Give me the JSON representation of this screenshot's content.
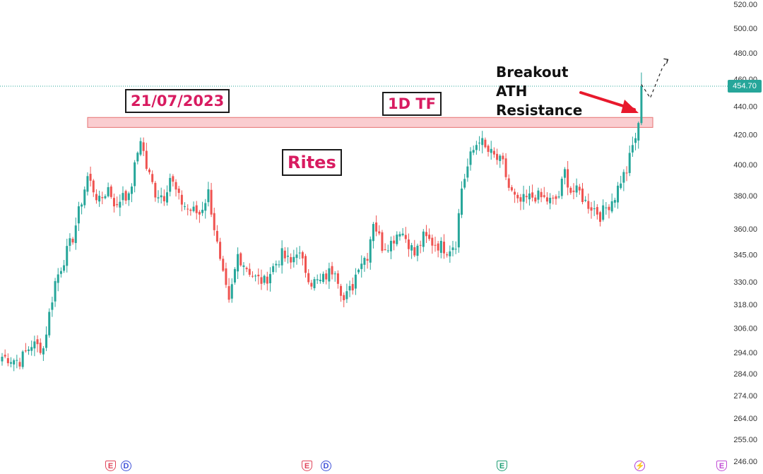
{
  "annotations": {
    "date_label": "21/07/2023",
    "timeframe_label": "1D TF",
    "ticker_label": "Rites",
    "breakout_lines": [
      "Breakout",
      "ATH",
      "Resistance"
    ]
  },
  "last_price_tag": "454.70",
  "event_icons": [
    {
      "name": "earnings-icon",
      "glyph": "E",
      "style": "earn-red"
    },
    {
      "name": "dividend-icon",
      "glyph": "D",
      "style": "div"
    },
    {
      "name": "earnings-icon",
      "glyph": "E",
      "style": "earn-red"
    },
    {
      "name": "dividend-icon",
      "glyph": "D",
      "style": "div"
    },
    {
      "name": "earnings-icon",
      "glyph": "E",
      "style": "earn-green"
    },
    {
      "name": "split-icon",
      "glyph": "⚡",
      "style": "split"
    },
    {
      "name": "earnings-icon",
      "glyph": "E",
      "style": "earn-pink"
    }
  ],
  "colors": {
    "up": "#26a69a",
    "down": "#ef5350",
    "resistance_fill": "#f9c4c8",
    "resistance_stroke": "#e57373",
    "arrow": "#e8192c",
    "axis_text": "#333333"
  },
  "chart_data": {
    "type": "candlestick",
    "title": "",
    "xlabel": "",
    "ylabel": "",
    "y_scale": "log",
    "ylim": [
      246,
      520
    ],
    "y_ticks": [
      "520.00",
      "500.00",
      "480.00",
      "460.00",
      "440.00",
      "420.00",
      "400.00",
      "380.00",
      "360.00",
      "345.00",
      "330.00",
      "318.00",
      "306.00",
      "294.00",
      "284.00",
      "274.00",
      "264.00",
      "255.00",
      "246.00"
    ],
    "y_tick_values": [
      520,
      500,
      480,
      460,
      440,
      420,
      400,
      380,
      360,
      345,
      330,
      318,
      306,
      294,
      284,
      274,
      264,
      255,
      246
    ],
    "resistance_zone": [
      425,
      432
    ],
    "last_price": 454.7,
    "anchors": [
      [
        0,
        292
      ],
      [
        6,
        290
      ],
      [
        10,
        298
      ],
      [
        14,
        296
      ],
      [
        18,
        330
      ],
      [
        24,
        355
      ],
      [
        29,
        392
      ],
      [
        33,
        376
      ],
      [
        36,
        385
      ],
      [
        39,
        372
      ],
      [
        41,
        383
      ],
      [
        43,
        378
      ],
      [
        47,
        418
      ],
      [
        49,
        398
      ],
      [
        52,
        382
      ],
      [
        55,
        380
      ],
      [
        57,
        392
      ],
      [
        60,
        378
      ],
      [
        63,
        372
      ],
      [
        67,
        369
      ],
      [
        70,
        382
      ],
      [
        74,
        340
      ],
      [
        77,
        318
      ],
      [
        80,
        345
      ],
      [
        83,
        338
      ],
      [
        86,
        332
      ],
      [
        89,
        330
      ],
      [
        92,
        338
      ],
      [
        95,
        345
      ],
      [
        98,
        340
      ],
      [
        100,
        348
      ],
      [
        102,
        340
      ],
      [
        105,
        330
      ],
      [
        108,
        330
      ],
      [
        111,
        335
      ],
      [
        113,
        338
      ],
      [
        116,
        320
      ],
      [
        119,
        328
      ],
      [
        121,
        340
      ],
      [
        124,
        345
      ],
      [
        126,
        365
      ],
      [
        129,
        350
      ],
      [
        132,
        352
      ],
      [
        135,
        360
      ],
      [
        138,
        352
      ],
      [
        140,
        345
      ],
      [
        143,
        355
      ],
      [
        146,
        352
      ],
      [
        149,
        350
      ],
      [
        151,
        348
      ],
      [
        154,
        352
      ],
      [
        156,
        385
      ],
      [
        159,
        405
      ],
      [
        162,
        418
      ],
      [
        164,
        410
      ],
      [
        167,
        405
      ],
      [
        170,
        400
      ],
      [
        172,
        385
      ],
      [
        175,
        375
      ],
      [
        178,
        378
      ],
      [
        181,
        380
      ],
      [
        184,
        378
      ],
      [
        187,
        376
      ],
      [
        189,
        380
      ],
      [
        191,
        395
      ],
      [
        193,
        383
      ],
      [
        196,
        382
      ],
      [
        198,
        376
      ],
      [
        201,
        372
      ],
      [
        203,
        368
      ],
      [
        206,
        375
      ],
      [
        208,
        380
      ],
      [
        210,
        390
      ],
      [
        212,
        396
      ],
      [
        214,
        412
      ],
      [
        216,
        425
      ],
      [
        217,
        454.7
      ]
    ],
    "projection_path": [
      [
        217,
        456
      ],
      [
        220,
        446
      ],
      [
        224,
        468
      ],
      [
        226,
        475
      ]
    ]
  }
}
